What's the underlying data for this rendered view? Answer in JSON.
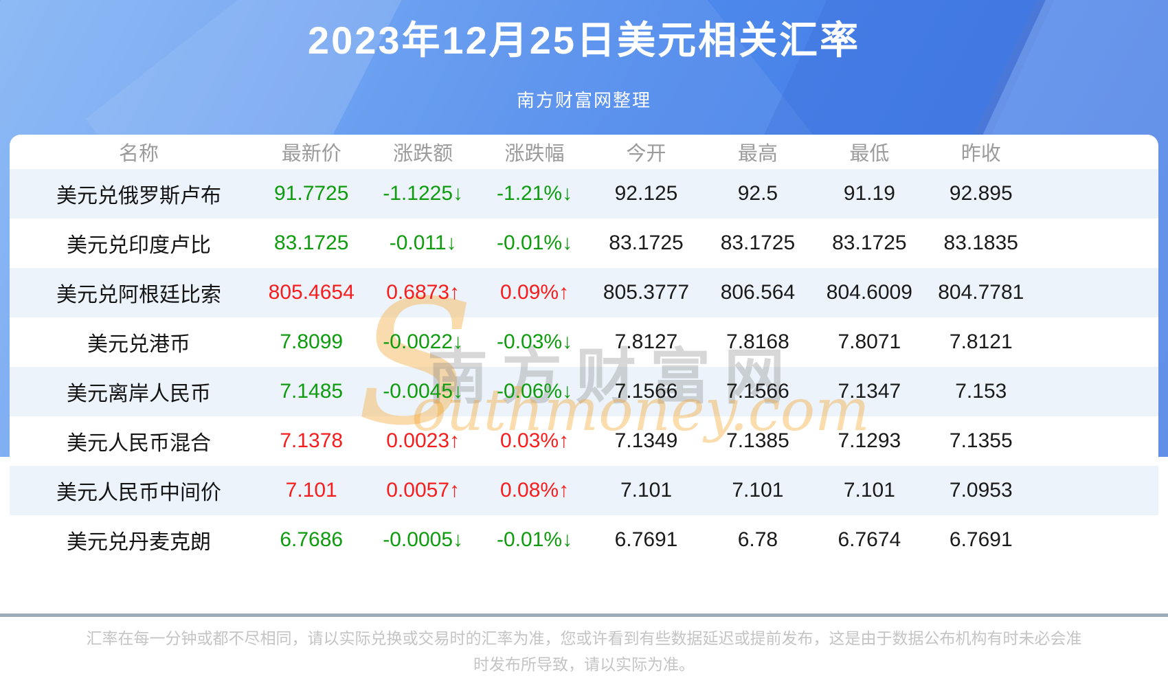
{
  "header": {
    "title": "2023年12月25日美元相关汇率",
    "subtitle": "南方财富网整理"
  },
  "watermark": {
    "initial": "S",
    "site_cn": "南方财富网",
    "site_en": "outhmoney.com"
  },
  "colors": {
    "up": "#f71d1d",
    "down": "#0e9c0e",
    "row_alt": "#ecf3fb",
    "banner_blue": "#4e89ec"
  },
  "table": {
    "headers": [
      "名称",
      "最新价",
      "涨跌额",
      "涨跌幅",
      "今开",
      "最高",
      "最低",
      "昨收"
    ],
    "rows": [
      {
        "name": "美元兑俄罗斯卢布",
        "trend": "down",
        "latest": "91.7725",
        "change": "-1.1225↓",
        "change_pct": "-1.21%↓",
        "open": "92.125",
        "high": "92.5",
        "low": "91.19",
        "prev_close": "92.895"
      },
      {
        "name": "美元兑印度卢比",
        "trend": "down",
        "latest": "83.1725",
        "change": "-0.011↓",
        "change_pct": "-0.01%↓",
        "open": "83.1725",
        "high": "83.1725",
        "low": "83.1725",
        "prev_close": "83.1835"
      },
      {
        "name": "美元兑阿根廷比索",
        "trend": "up",
        "latest": "805.4654",
        "change": "0.6873↑",
        "change_pct": "0.09%↑",
        "open": "805.3777",
        "high": "806.564",
        "low": "804.6009",
        "prev_close": "804.7781"
      },
      {
        "name": "美元兑港币",
        "trend": "down",
        "latest": "7.8099",
        "change": "-0.0022↓",
        "change_pct": "-0.03%↓",
        "open": "7.8127",
        "high": "7.8168",
        "low": "7.8071",
        "prev_close": "7.8121"
      },
      {
        "name": "美元离岸人民币",
        "trend": "down",
        "latest": "7.1485",
        "change": "-0.0045↓",
        "change_pct": "-0.06%↓",
        "open": "7.1566",
        "high": "7.1566",
        "low": "7.1347",
        "prev_close": "7.153"
      },
      {
        "name": "美元人民币混合",
        "trend": "up",
        "latest": "7.1378",
        "change": "0.0023↑",
        "change_pct": "0.03%↑",
        "open": "7.1349",
        "high": "7.1385",
        "low": "7.1293",
        "prev_close": "7.1355"
      },
      {
        "name": "美元人民币中间价",
        "trend": "up",
        "latest": "7.101",
        "change": "0.0057↑",
        "change_pct": "0.08%↑",
        "open": "7.101",
        "high": "7.101",
        "low": "7.101",
        "prev_close": "7.0953"
      },
      {
        "name": "美元兑丹麦克朗",
        "trend": "down",
        "latest": "6.7686",
        "change": "-0.0005↓",
        "change_pct": "-0.01%↓",
        "open": "6.7691",
        "high": "6.78",
        "low": "6.7674",
        "prev_close": "6.7691"
      }
    ]
  },
  "footer": {
    "disclaimer": "汇率在每一分钟或都不尽相同，请以实际兑换或交易时的汇率为准，您或许看到有些数据延迟或提前发布，这是由于数据公布机构有时未必会准时发布所导致，请以实际为准。"
  }
}
